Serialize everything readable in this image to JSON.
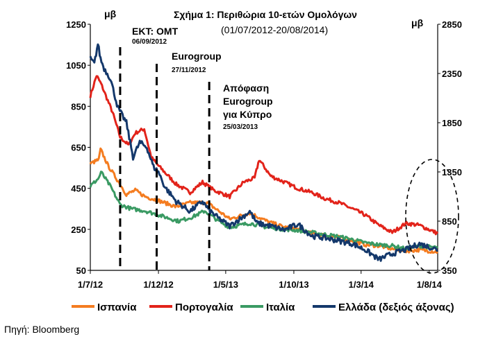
{
  "chart_data": {
    "type": "line",
    "title": "Σχήμα 1: Περιθώρια 10-ετών Ομολόγων",
    "subtitle": "(01/07/2012-20/08/2014)",
    "left_unit": "μβ",
    "right_unit": "μβ",
    "x_ticks": [
      "1/7/12",
      "1/12/12",
      "1/5/13",
      "1/10/13",
      "1/3/14",
      "1/8/14"
    ],
    "x_tick_dates": [
      "2012-07-01",
      "2012-12-01",
      "2013-05-01",
      "2013-10-01",
      "2014-03-01",
      "2014-08-01"
    ],
    "x_range": [
      "2012-07-01",
      "2014-08-20"
    ],
    "ylim_left": [
      50,
      1250
    ],
    "yticks_left": [
      "50",
      "250",
      "450",
      "650",
      "850",
      "1050",
      "1250"
    ],
    "ylim_right": [
      350,
      2850
    ],
    "yticks_right": [
      "350",
      "850",
      "1350",
      "1850",
      "2350",
      "2850"
    ],
    "grid": false,
    "legend_position": "bottom",
    "series": [
      {
        "name": "Ισπανία",
        "axis": "left",
        "color": "#f47c20",
        "dates": [
          "2012-07-01",
          "2012-07-20",
          "2012-07-24",
          "2012-08-10",
          "2012-09-06",
          "2012-09-20",
          "2012-10-10",
          "2012-11-01",
          "2012-12-01",
          "2013-01-10",
          "2013-02-10",
          "2013-03-20",
          "2013-04-15",
          "2013-05-10",
          "2013-06-24",
          "2013-08-01",
          "2013-09-10",
          "2013-10-10",
          "2013-11-10",
          "2013-12-10",
          "2014-01-10",
          "2014-02-10",
          "2014-03-10",
          "2014-04-10",
          "2014-05-10",
          "2014-06-10",
          "2014-07-10",
          "2014-08-20"
        ],
        "values": [
          570,
          590,
          640,
          560,
          470,
          420,
          440,
          410,
          390,
          360,
          380,
          380,
          340,
          300,
          330,
          290,
          260,
          250,
          230,
          220,
          210,
          195,
          175,
          170,
          155,
          145,
          150,
          140
        ]
      },
      {
        "name": "Πορτογαλία",
        "axis": "left",
        "color": "#e2231a",
        "dates": [
          "2012-07-01",
          "2012-07-15",
          "2012-07-25",
          "2012-08-20",
          "2012-09-06",
          "2012-09-25",
          "2012-10-10",
          "2012-10-30",
          "2012-11-15",
          "2012-12-01",
          "2013-01-10",
          "2013-02-10",
          "2013-03-10",
          "2013-04-05",
          "2013-05-10",
          "2013-06-10",
          "2013-07-05",
          "2013-07-15",
          "2013-08-10",
          "2013-09-10",
          "2013-10-10",
          "2013-11-10",
          "2013-12-10",
          "2014-01-10",
          "2014-02-10",
          "2014-03-10",
          "2014-04-10",
          "2014-05-10",
          "2014-06-10",
          "2014-07-10",
          "2014-08-20"
        ],
        "values": [
          900,
          1000,
          960,
          820,
          700,
          660,
          720,
          740,
          600,
          560,
          470,
          430,
          480,
          440,
          410,
          480,
          500,
          590,
          510,
          480,
          450,
          430,
          400,
          380,
          350,
          320,
          270,
          235,
          280,
          270,
          230
        ]
      },
      {
        "name": "Ιταλία",
        "axis": "left",
        "color": "#3a9a63",
        "dates": [
          "2012-07-01",
          "2012-07-20",
          "2012-07-25",
          "2012-08-15",
          "2012-09-06",
          "2012-10-01",
          "2012-11-01",
          "2012-12-01",
          "2013-01-15",
          "2013-02-15",
          "2013-03-15",
          "2013-04-15",
          "2013-05-10",
          "2013-06-24",
          "2013-08-01",
          "2013-09-10",
          "2013-10-10",
          "2013-11-10",
          "2013-12-10",
          "2014-01-10",
          "2014-02-10",
          "2014-03-10",
          "2014-04-10",
          "2014-05-10",
          "2014-06-10",
          "2014-07-10",
          "2014-08-20"
        ],
        "values": [
          460,
          500,
          530,
          460,
          370,
          350,
          340,
          320,
          290,
          310,
          340,
          290,
          260,
          280,
          260,
          250,
          245,
          235,
          225,
          215,
          200,
          185,
          175,
          170,
          155,
          170,
          160
        ]
      },
      {
        "name": "Ελλάδα (δεξιός άξονας)",
        "axis": "right",
        "color": "#14386b",
        "dates": [
          "2012-07-01",
          "2012-07-10",
          "2012-07-18",
          "2012-07-24",
          "2012-08-01",
          "2012-08-15",
          "2012-09-01",
          "2012-09-20",
          "2012-10-05",
          "2012-10-20",
          "2012-11-05",
          "2012-11-20",
          "2012-12-01",
          "2012-12-15",
          "2013-01-10",
          "2013-02-10",
          "2013-03-10",
          "2013-03-25",
          "2013-04-15",
          "2013-05-10",
          "2013-05-22",
          "2013-06-10",
          "2013-06-24",
          "2013-07-10",
          "2013-08-10",
          "2013-09-10",
          "2013-10-10",
          "2013-11-10",
          "2013-12-10",
          "2014-01-10",
          "2014-02-10",
          "2014-03-10",
          "2014-04-10",
          "2014-05-10",
          "2014-06-10",
          "2014-07-10",
          "2014-08-20"
        ],
        "values": [
          2500,
          2450,
          2650,
          2500,
          2400,
          2300,
          2000,
          1850,
          1500,
          1650,
          1600,
          1400,
          1350,
          1200,
          1050,
          950,
          1050,
          960,
          880,
          800,
          840,
          900,
          950,
          830,
          800,
          760,
          820,
          700,
          680,
          650,
          620,
          560,
          460,
          520,
          560,
          620,
          560
        ]
      }
    ]
  },
  "annotations": [
    {
      "title": "ΕΚΤ: OMT",
      "date": "06/09/2012"
    },
    {
      "title": "Eurogroup",
      "date": "27/11/2012"
    },
    {
      "title": "Απόφαση",
      "title2": "Eurogroup",
      "title3": "για Κύπρο",
      "date": "25/03/2013"
    }
  ],
  "source": "Πηγή: Bloomberg"
}
